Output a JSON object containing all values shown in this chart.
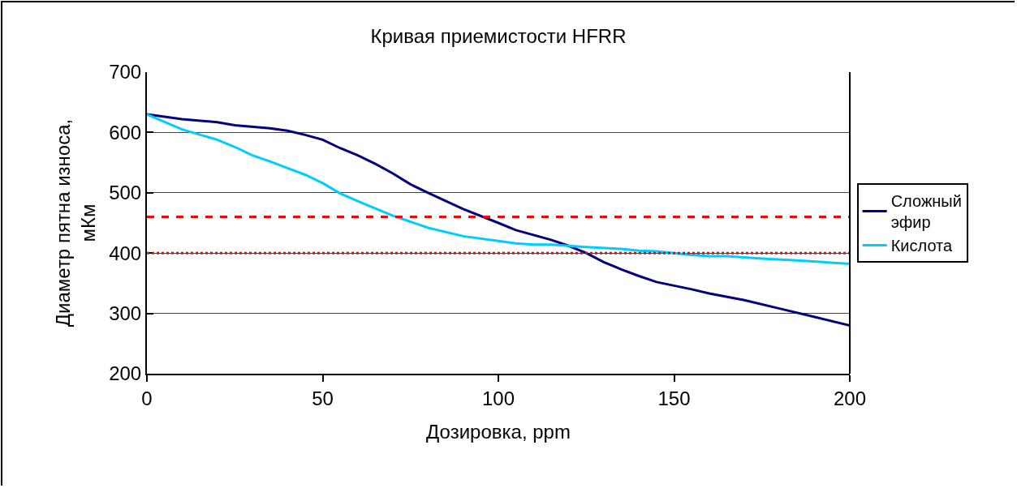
{
  "chart_data": {
    "type": "line",
    "title": "Кривая приемистости HFRR",
    "xlabel": "Дозировка, ppm",
    "ylabel": "Диаметр пятна износа, мКм",
    "xlim": [
      0,
      200
    ],
    "xticks": [
      0,
      50,
      100,
      150,
      200
    ],
    "ylim": [
      200,
      700
    ],
    "yticks": [
      200,
      300,
      400,
      500,
      600,
      700
    ],
    "grid": "y",
    "legend": "right",
    "marker": "none",
    "series": [
      {
        "name": "Сложный эфир",
        "color": "#000080",
        "x": [
          0,
          10,
          20,
          25,
          35,
          40,
          45,
          50,
          55,
          60,
          65,
          70,
          75,
          80,
          90,
          100,
          105,
          115,
          120,
          125,
          130,
          135,
          140,
          145,
          155,
          160,
          170,
          180,
          190,
          200
        ],
        "values": [
          630,
          622,
          617,
          612,
          607,
          603,
          596,
          588,
          574,
          562,
          548,
          532,
          514,
          500,
          473,
          450,
          438,
          422,
          412,
          400,
          385,
          373,
          362,
          352,
          340,
          333,
          322,
          308,
          294,
          280
        ]
      },
      {
        "name": "Кислота",
        "color": "#00ccff",
        "x": [
          0,
          10,
          20,
          25,
          30,
          35,
          40,
          45,
          50,
          55,
          60,
          65,
          70,
          75,
          80,
          90,
          100,
          105,
          110,
          115,
          125,
          135,
          140,
          145,
          150,
          155,
          160,
          165,
          175,
          185,
          200
        ],
        "values": [
          630,
          605,
          588,
          576,
          562,
          552,
          541,
          530,
          516,
          499,
          486,
          474,
          462,
          452,
          442,
          428,
          420,
          416,
          414,
          414,
          410,
          407,
          404,
          403,
          400,
          397,
          395,
          395,
          391,
          388,
          382
        ]
      }
    ],
    "ref_lines": [
      {
        "axis": "y",
        "value": 460,
        "color": "#ff0000",
        "line_style": "dashed"
      },
      {
        "axis": "y",
        "value": 400,
        "color": "#ff0000",
        "line_style": "dotted"
      }
    ]
  }
}
